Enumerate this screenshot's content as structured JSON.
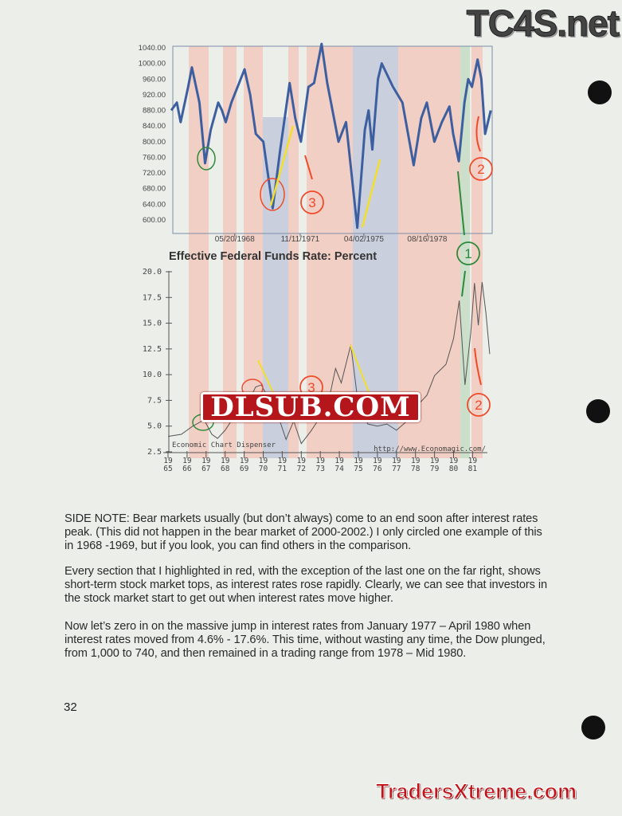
{
  "watermarks": {
    "top": "TC4S.net",
    "middle": "DLSUB.COM",
    "bottom": "TradersXtreme.com"
  },
  "colors": {
    "red_band": "#f3c9bd",
    "blue_band": "#c4c9dc",
    "green_band": "#c6dcc4",
    "dow_line": "#3d5fa0",
    "rate_line": "#555555",
    "yellow_arrow": "#f2df2a",
    "red_annot": "#ee4b2b",
    "green_annot": "#2e8a3a"
  },
  "chart_data": [
    {
      "type": "line",
      "title": "",
      "ylim": [
        580,
        1050
      ],
      "y_ticks": [
        "600.00",
        "640.00",
        "680.00",
        "720.00",
        "760.00",
        "800.00",
        "840.00",
        "880.00",
        "920.00",
        "960.00",
        "1000.00",
        "1040.00"
      ],
      "x_ticks": [
        "05/20/1968",
        "11/11/1971",
        "04/02/1975",
        "08/16/1978"
      ],
      "series": [
        {
          "x": [
            1965.0,
            1965.3,
            1965.5,
            1965.9,
            1966.1,
            1966.5,
            1966.8,
            1967.1,
            1967.5,
            1967.7,
            1967.9,
            1968.2,
            1968.9,
            1969.2,
            1969.5,
            1969.9,
            1970.4,
            1970.8,
            1971.3,
            1971.6,
            1971.9,
            1972.3,
            1972.6,
            1973.0,
            1973.3,
            1973.9,
            1974.3,
            1974.9,
            1975.3,
            1975.5,
            1975.7,
            1976.0,
            1976.2,
            1976.8,
            1977.3,
            1977.9,
            1978.3,
            1978.6,
            1979.0,
            1979.4,
            1979.8,
            1980.0,
            1980.3,
            1980.6,
            1980.8,
            1981.0,
            1981.3,
            1981.5,
            1981.7,
            1982.0
          ],
          "y": [
            880,
            900,
            850,
            940,
            990,
            900,
            745,
            830,
            900,
            880,
            850,
            900,
            985,
            920,
            820,
            800,
            630,
            780,
            950,
            860,
            800,
            940,
            950,
            1050,
            950,
            800,
            850,
            580,
            830,
            880,
            780,
            960,
            1000,
            940,
            900,
            740,
            860,
            900,
            800,
            850,
            890,
            820,
            750,
            900,
            960,
            940,
            1010,
            960,
            820,
            880
          ]
        }
      ]
    },
    {
      "type": "line",
      "title": "Effective Federal Funds Rate: Percent",
      "ylim": [
        2.5,
        20.0
      ],
      "y_ticks": [
        "2.5",
        "5.0",
        "7.5",
        "10.0",
        "12.5",
        "15.0",
        "17.5",
        "20.0"
      ],
      "x_ticks": [
        "1965",
        "1966",
        "1967",
        "1968",
        "1969",
        "1970",
        "1971",
        "1972",
        "1973",
        "1974",
        "1975",
        "1976",
        "1977",
        "1978",
        "1979",
        "1980",
        "1981"
      ],
      "source_left": "Economic Chart Dispenser",
      "source_right": "http://www.Economagic.com/",
      "series": [
        {
          "x": [
            1965.0,
            1965.7,
            1966.3,
            1966.9,
            1967.3,
            1967.6,
            1968.0,
            1968.5,
            1969.0,
            1969.6,
            1969.9,
            1970.3,
            1970.8,
            1971.2,
            1971.6,
            1972.0,
            1972.5,
            1973.0,
            1973.5,
            1973.8,
            1974.1,
            1974.6,
            1975.0,
            1975.5,
            1976.0,
            1976.5,
            1977.0,
            1977.5,
            1978.0,
            1978.6,
            1979.0,
            1979.6,
            1980.0,
            1980.3,
            1980.6,
            1980.9,
            1981.1,
            1981.3,
            1981.5,
            1981.7,
            1981.9
          ],
          "y": [
            4.0,
            4.2,
            5.0,
            5.6,
            4.2,
            3.8,
            4.6,
            6.0,
            6.5,
            8.8,
            9.0,
            7.6,
            5.9,
            3.7,
            5.5,
            3.3,
            4.5,
            5.9,
            8.0,
            10.6,
            9.2,
            12.9,
            7.0,
            5.2,
            5.0,
            5.2,
            4.6,
            5.4,
            6.8,
            8.0,
            9.9,
            11.0,
            13.5,
            17.2,
            9.0,
            14.0,
            18.9,
            14.8,
            19.0,
            16.0,
            12.0
          ]
        }
      ]
    }
  ],
  "annotations": {
    "one": "1",
    "two": "2",
    "three": "3"
  },
  "paragraphs": [
    "SIDE NOTE: Bear markets usually (but don’t always) come to an end soon after interest rates peak.  (This did not happen in the bear market of 2000-2002.)  I only circled one example of this in 1968 -1969, but if you look, you can find others in the comparison.",
    "Every section that I highlighted in red, with the exception of the last one on the far right, shows short-term stock market tops, as interest rates rose rapidly.  Clearly, we can see that investors in the stock market start to get out when interest rates move higher.",
    "Now let’s zero in on the massive jump in interest rates from January 1977 – April 1980 when interest rates moved from 4.6% - 17.6%.  This time, without wasting any time, the Dow plunged, from 1,000 to 740, and then remained in a trading range from 1978 – Mid 1980."
  ],
  "page_number": "32"
}
